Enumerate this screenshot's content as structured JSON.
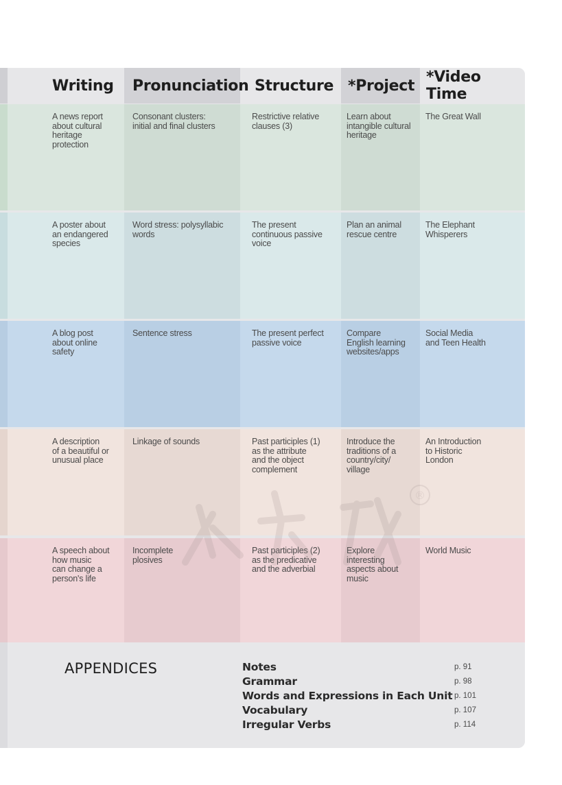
{
  "headers": {
    "writing": "Writing",
    "pronunciation": "Pronunciation",
    "structure": "Structure",
    "project": "*Project",
    "video_time": "*Video Time"
  },
  "units": [
    {
      "color": "#dae6de",
      "shade": "#cfdcd3",
      "bar": "#c9dccd",
      "writing": [
        "A news report",
        "about cultural",
        "heritage",
        "protection"
      ],
      "pronunciation": [
        "Consonant clusters:",
        "initial and final clusters"
      ],
      "structure": [
        "Restrictive relative",
        "clauses (3)"
      ],
      "project": [
        "Learn about",
        "intangible cultural",
        "heritage"
      ],
      "video_time": [
        "The Great Wall"
      ]
    },
    {
      "color": "#dae9ea",
      "shade": "#cddde0",
      "bar": "#c8dddf",
      "writing": [
        "A poster about",
        "an endangered",
        "species"
      ],
      "pronunciation": [
        "Word stress: polysyllabic",
        "words"
      ],
      "structure": [
        "The present",
        "continuous passive",
        "voice"
      ],
      "project": [
        "Plan an animal",
        "rescue centre"
      ],
      "video_time": [
        "The Elephant",
        "Whisperers"
      ]
    },
    {
      "color": "#c5d9ec",
      "shade": "#b9cfe4",
      "bar": "#b7cde2",
      "writing": [
        "A blog post",
        "about online",
        "safety"
      ],
      "pronunciation": [
        "Sentence stress"
      ],
      "structure": [
        "The present perfect",
        "passive voice"
      ],
      "project": [
        "Compare",
        "English learning",
        "websites/apps"
      ],
      "video_time": [
        "Social Media",
        "and Teen Health"
      ]
    },
    {
      "color": "#f1e4de",
      "shade": "#e7d9d3",
      "bar": "#e5d5ce",
      "writing": [
        "A description",
        "of a beautiful or",
        "unusual place"
      ],
      "pronunciation": [
        "Linkage of sounds"
      ],
      "structure": [
        "Past participles (1)",
        "as the attribute",
        "and the object",
        "complement"
      ],
      "project": [
        "Introduce the",
        "traditions of a",
        "country/city/",
        "village"
      ],
      "video_time": [
        "An Introduction",
        "to Historic",
        "London"
      ]
    },
    {
      "color": "#f1d6d9",
      "shade": "#e7cbcf",
      "bar": "#e6c9cd",
      "writing": [
        "A speech about",
        "how music",
        "can change a",
        "person's life"
      ],
      "pronunciation": [
        "Incomplete",
        "plosives"
      ],
      "structure": [
        "Past participles (2)",
        "as the predicative",
        "and the adverbial"
      ],
      "project": [
        "Explore",
        "interesting",
        "aspects about",
        "music"
      ],
      "video_time": [
        "World Music"
      ]
    }
  ],
  "appendices": {
    "title": "APPENDICES",
    "items": [
      {
        "label": "Notes",
        "page": "p. 91"
      },
      {
        "label": "Grammar",
        "page": "p. 98"
      },
      {
        "label": "Words and Expressions in Each Unit",
        "page": "p. 101"
      },
      {
        "label": "Vocabulary",
        "page": "p. 107"
      },
      {
        "label": "Irregular Verbs",
        "page": "p. 114"
      }
    ]
  },
  "watermark": {
    "symbol": "®"
  }
}
